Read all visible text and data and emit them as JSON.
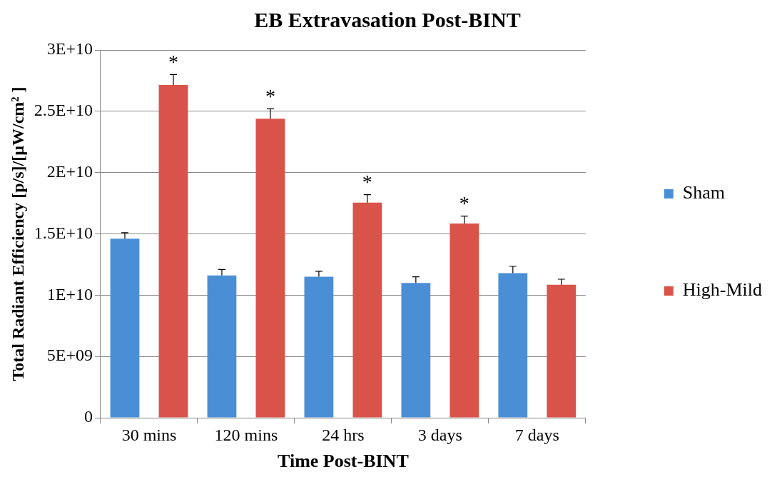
{
  "chart_data": {
    "type": "bar",
    "title": "EB Extravasation Post-BINT",
    "xlabel": "Time Post-BINT",
    "ylabel": "Total Radiant Efficiency [p/s]/[µW/cm² ]",
    "categories": [
      "30 mins",
      "120 mins",
      "24 hrs",
      "3 days",
      "7 days"
    ],
    "series": [
      {
        "name": "Sham",
        "color": "#4a8fd6",
        "values": [
          14600000000,
          11600000000,
          11500000000,
          11000000000,
          11800000000
        ],
        "errors": [
          [
            14600000000,
            15100000000
          ],
          [
            11600000000,
            12100000000
          ],
          [
            11500000000,
            11950000000
          ],
          [
            11000000000,
            11500000000
          ],
          [
            11800000000,
            12350000000
          ]
        ]
      },
      {
        "name": "High-Mild",
        "color": "#d9534a",
        "values": [
          27150000000,
          24400000000,
          17550000000,
          15850000000,
          10850000000
        ],
        "errors": [
          [
            27150000000,
            28000000000
          ],
          [
            24400000000,
            25200000000
          ],
          [
            17550000000,
            18200000000
          ],
          [
            15850000000,
            16450000000
          ],
          [
            10850000000,
            11300000000
          ]
        ]
      }
    ],
    "ylim": [
      0,
      30000000000
    ],
    "yticks": [
      0,
      {
        "value": 5000000000,
        "label": "5E+09"
      },
      {
        "value": 10000000000,
        "label": "1E+10"
      },
      {
        "value": 15000000000,
        "label": "1.5E+10"
      },
      {
        "value": 20000000000,
        "label": "2E+10"
      },
      {
        "value": 25000000000,
        "label": "2.5E+10"
      },
      {
        "value": 30000000000,
        "label": "3E+10"
      }
    ],
    "annotations": [
      "*",
      "*",
      "*",
      "*"
    ],
    "grid": "y",
    "legend": "right"
  }
}
